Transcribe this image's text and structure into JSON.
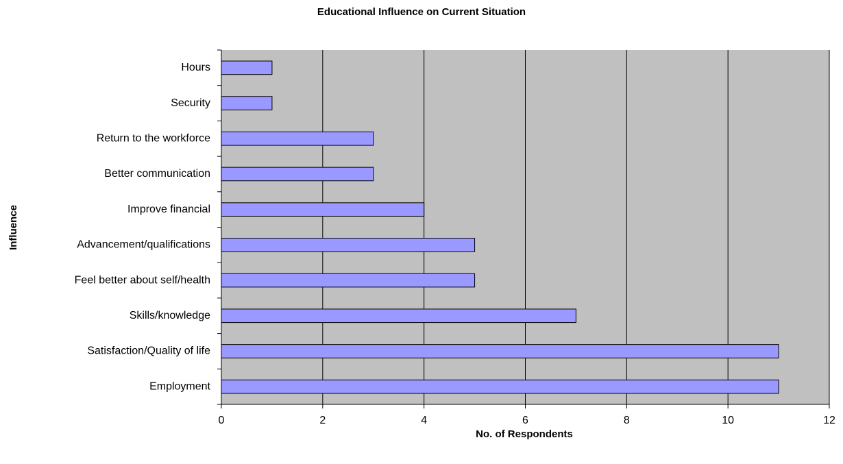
{
  "chart_data": {
    "type": "bar",
    "orientation": "horizontal",
    "title": "Educational Influence on Current Situation",
    "x_label": "No. of Respondents",
    "y_label": "Influence",
    "categories": [
      "Hours",
      "Security",
      "Return to the workforce",
      "Better communication",
      "Improve financial",
      "Advancement/qualifications",
      "Feel better about self/health",
      "Skills/knowledge",
      "Satisfaction/Quality of life",
      "Employment"
    ],
    "values": [
      1,
      1,
      3,
      3,
      4,
      5,
      5,
      7,
      11,
      11
    ],
    "color": "#9999ff",
    "xlim": [
      0,
      12
    ],
    "xticks": [
      0,
      2,
      4,
      6,
      8,
      10,
      12
    ],
    "grid": true
  }
}
